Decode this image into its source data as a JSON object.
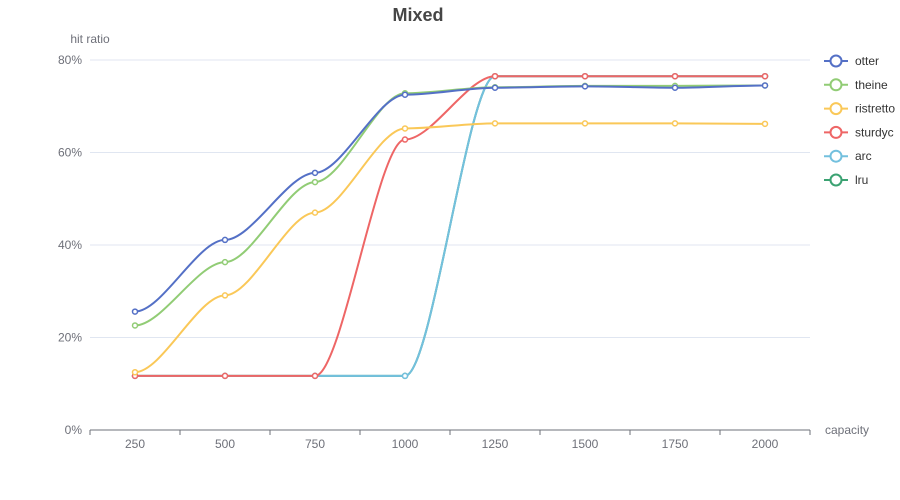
{
  "chart_data": {
    "type": "line",
    "title": "Mixed",
    "xlabel": "capacity",
    "ylabel": "hit ratio",
    "categories": [
      "250",
      "500",
      "750",
      "1000",
      "1250",
      "1500",
      "1750",
      "2000"
    ],
    "y_ticks": [
      "0%",
      "20%",
      "40%",
      "60%",
      "80%"
    ],
    "ylim": [
      0,
      80
    ],
    "grid": true,
    "legend_position": "right",
    "series": [
      {
        "name": "otter",
        "color": "#5470c6",
        "values": [
          25.6,
          41.1,
          55.6,
          72.5,
          74.0,
          74.3,
          74.0,
          74.5
        ]
      },
      {
        "name": "theine",
        "color": "#91cc75",
        "values": [
          22.6,
          36.3,
          53.6,
          72.8,
          74.1,
          74.4,
          74.4,
          74.5
        ]
      },
      {
        "name": "ristretto",
        "color": "#fac858",
        "values": [
          12.5,
          29.1,
          47.0,
          65.2,
          66.3,
          66.3,
          66.3,
          66.2
        ]
      },
      {
        "name": "sturdyc",
        "color": "#ee6666",
        "values": [
          11.7,
          11.7,
          11.7,
          62.8,
          76.5,
          76.5,
          76.5,
          76.5
        ]
      },
      {
        "name": "arc",
        "color": "#73c0de",
        "values": [
          11.7,
          11.7,
          11.7,
          11.7,
          76.5,
          76.5,
          76.5,
          76.5
        ]
      },
      {
        "name": "lru",
        "color": "#3ba272",
        "values": [
          11.7,
          11.7,
          11.7,
          11.7,
          76.5,
          76.5,
          76.5,
          76.5
        ]
      }
    ]
  }
}
